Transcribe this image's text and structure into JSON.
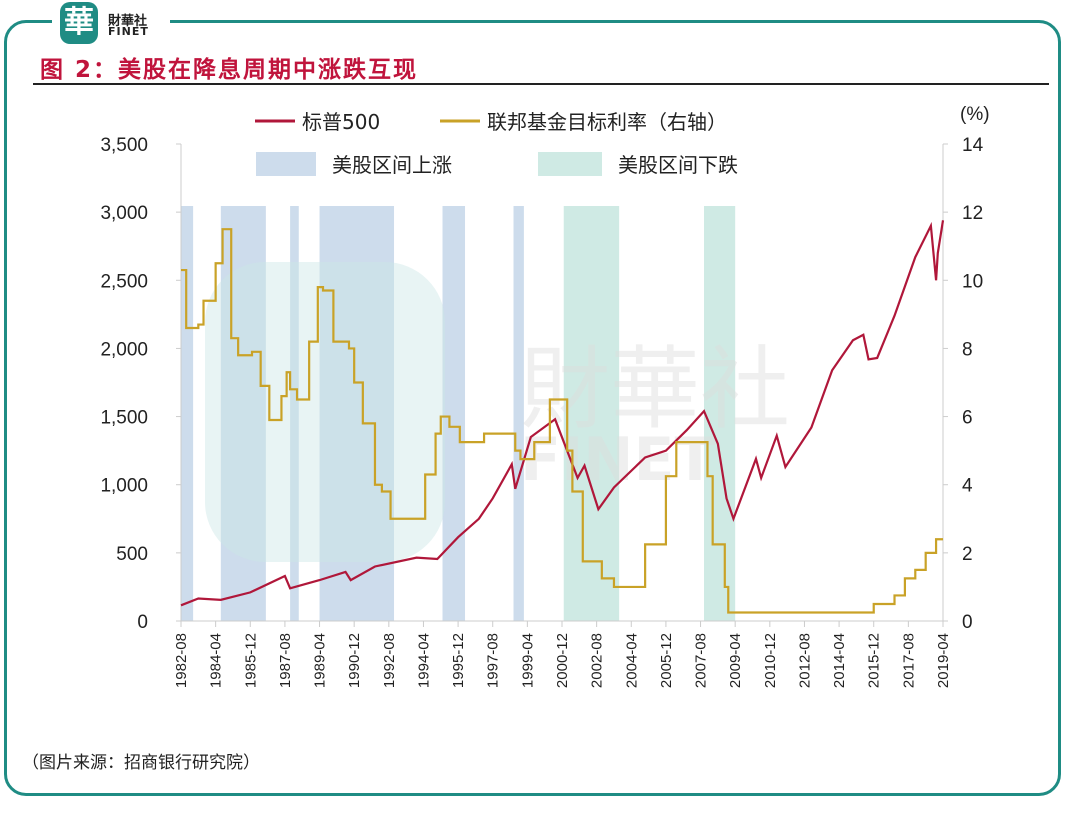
{
  "brand": {
    "logo_char": "華",
    "name_cn": "財華社",
    "name_en": "FINET",
    "watermark_cn": "財華社",
    "watermark_en": "FINET"
  },
  "title": "图 2：美股在降息周期中涨跌互现",
  "source": "（图片来源：招商银行研究院）",
  "colors": {
    "frame": "#1f8c84",
    "title": "#c0143c",
    "sp500": "#b0173a",
    "fed": "#c9a227",
    "up_band": "#cddcec",
    "down_band": "#cfeae4"
  },
  "chart_data": {
    "type": "line",
    "right_axis_unit": "(%)",
    "left_ylim": [
      0,
      3500
    ],
    "right_ylim": [
      0,
      14
    ],
    "left_ticks": [
      "0",
      "500",
      "1,000",
      "1,500",
      "2,000",
      "2,500",
      "3,000",
      "3,500"
    ],
    "right_ticks": [
      "0",
      "2",
      "4",
      "6",
      "8",
      "10",
      "12",
      "14"
    ],
    "x_ticks": [
      "1982-08",
      "1984-04",
      "1985-12",
      "1987-08",
      "1989-04",
      "1990-12",
      "1992-08",
      "1994-04",
      "1995-12",
      "1997-08",
      "1999-04",
      "2000-12",
      "2002-08",
      "2004-04",
      "2005-12",
      "2007-08",
      "2009-04",
      "2010-12",
      "2012-08",
      "2014-04",
      "2015-12",
      "2017-08",
      "2019-04"
    ],
    "legend": {
      "sp500": "标普500",
      "fed": "联邦基金目标利率（右轴）",
      "up": "美股区间上涨",
      "down": "美股区间下跌"
    },
    "bands_up": [
      [
        "1982-08",
        "1983-03"
      ],
      [
        "1984-07",
        "1986-09"
      ],
      [
        "1987-11",
        "1988-04"
      ],
      [
        "1989-04",
        "1992-11"
      ],
      [
        "1995-03",
        "1996-04"
      ],
      [
        "1998-08",
        "1999-02"
      ]
    ],
    "bands_down": [
      [
        "2001-01",
        "2003-09"
      ],
      [
        "2007-10",
        "2009-04"
      ]
    ],
    "series": [
      {
        "name": "标普500",
        "axis": "left",
        "points": [
          [
            "1982-08",
            115
          ],
          [
            "1983-06",
            165
          ],
          [
            "1984-07",
            155
          ],
          [
            "1985-12",
            210
          ],
          [
            "1987-08",
            330
          ],
          [
            "1987-11",
            240
          ],
          [
            "1989-04",
            300
          ],
          [
            "1990-07",
            360
          ],
          [
            "1990-10",
            300
          ],
          [
            "1991-12",
            400
          ],
          [
            "1993-12",
            465
          ],
          [
            "1994-12",
            455
          ],
          [
            "1995-12",
            615
          ],
          [
            "1996-12",
            750
          ],
          [
            "1997-08",
            900
          ],
          [
            "1998-07",
            1150
          ],
          [
            "1998-09",
            970
          ],
          [
            "1999-06",
            1350
          ],
          [
            "2000-08",
            1480
          ],
          [
            "2001-09",
            1050
          ],
          [
            "2002-01",
            1140
          ],
          [
            "2002-09",
            820
          ],
          [
            "2003-06",
            980
          ],
          [
            "2004-12",
            1200
          ],
          [
            "2005-12",
            1250
          ],
          [
            "2006-12",
            1400
          ],
          [
            "2007-10",
            1540
          ],
          [
            "2008-06",
            1300
          ],
          [
            "2008-11",
            900
          ],
          [
            "2009-03",
            750
          ],
          [
            "2010-04",
            1190
          ],
          [
            "2010-07",
            1050
          ],
          [
            "2011-04",
            1360
          ],
          [
            "2011-09",
            1130
          ],
          [
            "2012-12",
            1420
          ],
          [
            "2013-12",
            1840
          ],
          [
            "2014-12",
            2060
          ],
          [
            "2015-06",
            2100
          ],
          [
            "2015-09",
            1920
          ],
          [
            "2016-02",
            1930
          ],
          [
            "2016-12",
            2240
          ],
          [
            "2017-12",
            2670
          ],
          [
            "2018-09",
            2900
          ],
          [
            "2018-12",
            2500
          ],
          [
            "2019-01",
            2700
          ],
          [
            "2019-04",
            2940
          ]
        ]
      },
      {
        "name": "联邦基金目标利率（右轴）",
        "axis": "right",
        "step": true,
        "points": [
          [
            "1982-08",
            10.3
          ],
          [
            "1982-11",
            8.6
          ],
          [
            "1983-06",
            8.7
          ],
          [
            "1983-09",
            9.4
          ],
          [
            "1984-04",
            10.5
          ],
          [
            "1984-08",
            11.5
          ],
          [
            "1985-01",
            8.3
          ],
          [
            "1985-05",
            7.8
          ],
          [
            "1986-01",
            7.9
          ],
          [
            "1986-06",
            6.9
          ],
          [
            "1986-11",
            5.9
          ],
          [
            "1987-06",
            6.6
          ],
          [
            "1987-09",
            7.3
          ],
          [
            "1987-11",
            6.8
          ],
          [
            "1988-03",
            6.5
          ],
          [
            "1988-10",
            8.2
          ],
          [
            "1989-03",
            9.8
          ],
          [
            "1989-06",
            9.7
          ],
          [
            "1989-12",
            8.2
          ],
          [
            "1990-09",
            8.0
          ],
          [
            "1990-12",
            7.0
          ],
          [
            "1991-05",
            5.8
          ],
          [
            "1991-12",
            4.0
          ],
          [
            "1992-04",
            3.8
          ],
          [
            "1992-09",
            3.0
          ],
          [
            "1993-12",
            3.0
          ],
          [
            "1994-05",
            4.3
          ],
          [
            "1994-11",
            5.5
          ],
          [
            "1995-02",
            6.0
          ],
          [
            "1995-07",
            5.7
          ],
          [
            "1996-01",
            5.25
          ],
          [
            "1997-03",
            5.5
          ],
          [
            "1998-09",
            5.0
          ],
          [
            "1998-12",
            4.75
          ],
          [
            "1999-08",
            5.25
          ],
          [
            "2000-05",
            6.5
          ],
          [
            "2000-12",
            6.5
          ],
          [
            "2001-03",
            5.0
          ],
          [
            "2001-06",
            3.8
          ],
          [
            "2001-12",
            1.75
          ],
          [
            "2002-11",
            1.25
          ],
          [
            "2003-06",
            1.0
          ],
          [
            "2004-06",
            1.0
          ],
          [
            "2004-12",
            2.25
          ],
          [
            "2005-12",
            4.25
          ],
          [
            "2006-06",
            5.25
          ],
          [
            "2007-08",
            5.25
          ],
          [
            "2007-12",
            4.25
          ],
          [
            "2008-03",
            2.25
          ],
          [
            "2008-10",
            1.0
          ],
          [
            "2008-12",
            0.25
          ],
          [
            "2015-12",
            0.5
          ],
          [
            "2016-12",
            0.75
          ],
          [
            "2017-06",
            1.25
          ],
          [
            "2017-12",
            1.5
          ],
          [
            "2018-06",
            2.0
          ],
          [
            "2018-12",
            2.4
          ],
          [
            "2019-04",
            2.4
          ]
        ]
      }
    ]
  }
}
